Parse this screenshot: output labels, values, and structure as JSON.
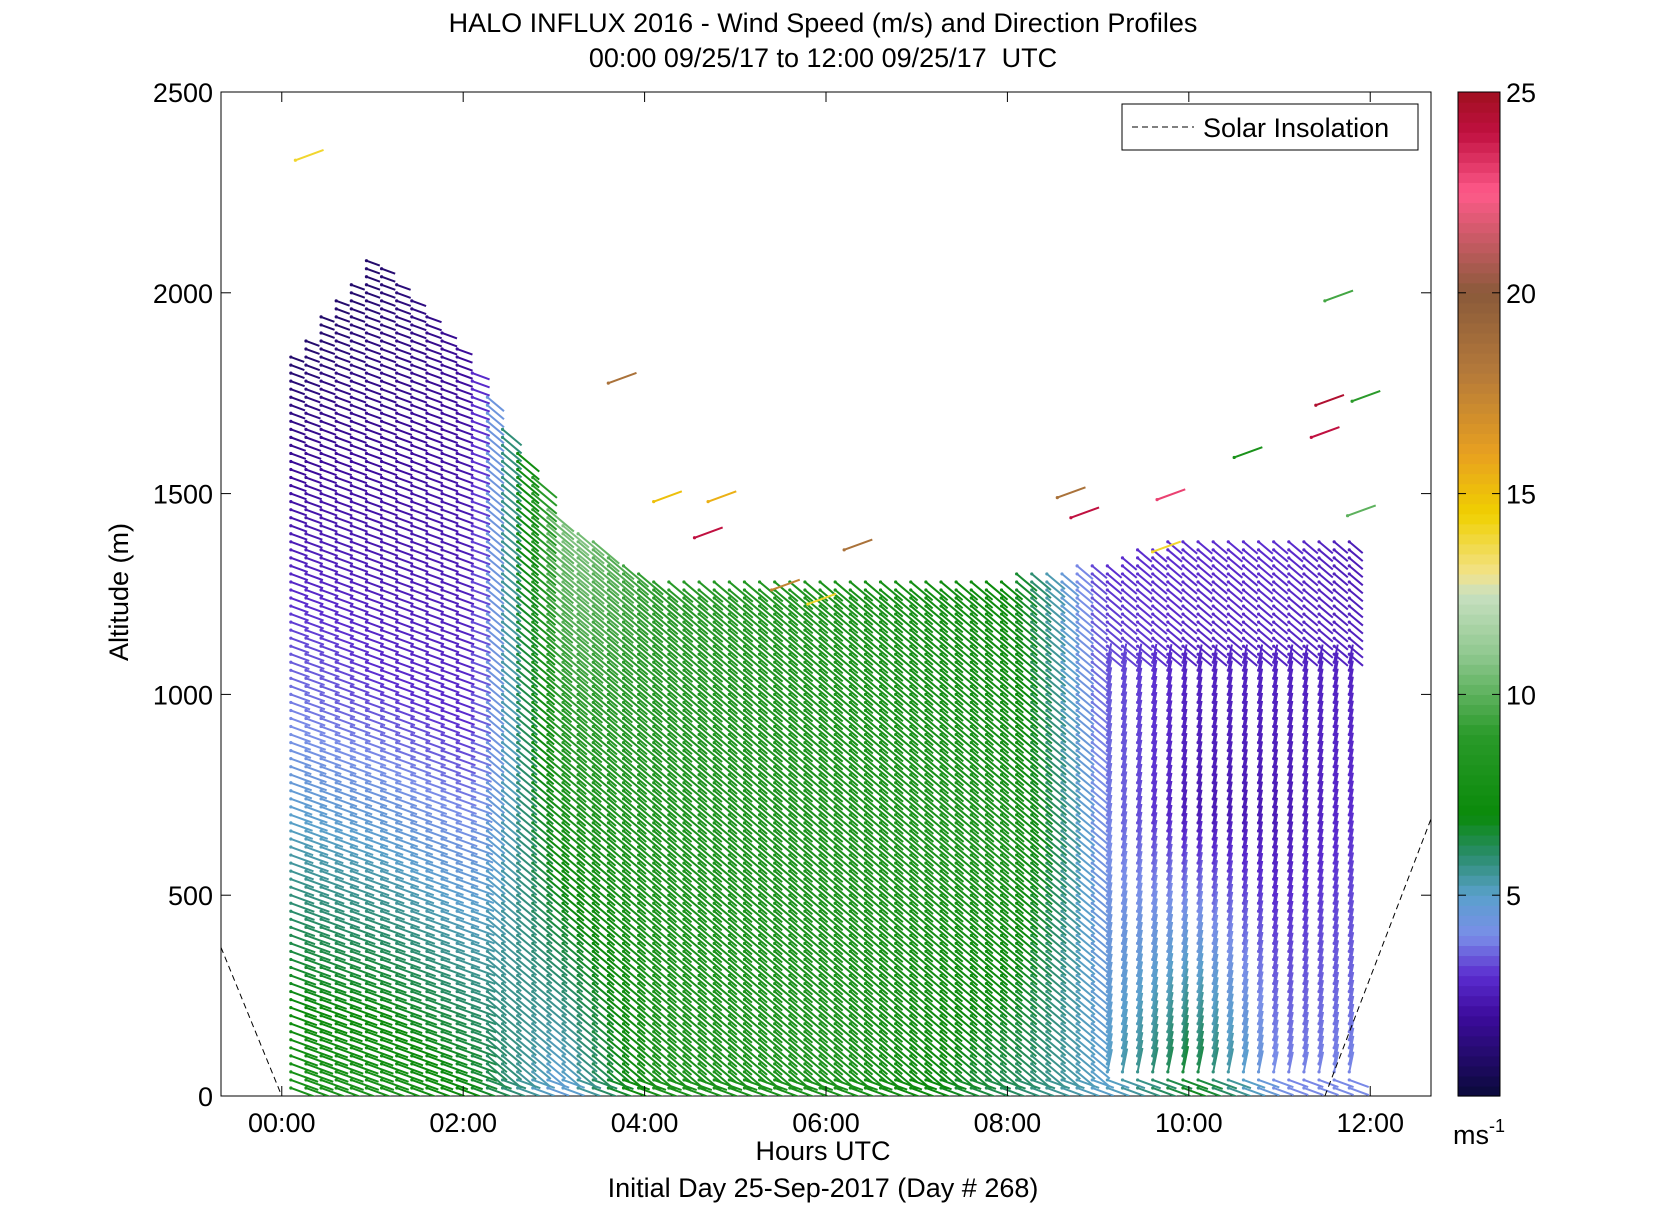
{
  "chart_data": {
    "type": "vector field (wind barbs)",
    "title": "HALO INFLUX 2016 - Wind Speed (m/s) and Direction Profiles",
    "subtitle": "00:00 09/25/17 to 12:00 09/25/17  UTC",
    "xlabel": "Hours UTC",
    "xlabel2": "Initial Day 25-Sep-2017 (Day # 268)",
    "ylabel": "Altitude (m)",
    "x_ticks": [
      "00:00",
      "02:00",
      "04:00",
      "06:00",
      "08:00",
      "10:00",
      "12:00"
    ],
    "x_tick_hours": [
      0,
      2,
      4,
      6,
      8,
      10,
      12
    ],
    "xlim_hours": [
      -0.67,
      12.67
    ],
    "y_ticks": [
      "0",
      "500",
      "1000",
      "1500",
      "2000",
      "2500"
    ],
    "y_tick_values": [
      0,
      500,
      1000,
      1500,
      2000,
      2500
    ],
    "ylim": [
      0,
      2500
    ],
    "colorbar": {
      "ticks": [
        "5",
        "10",
        "15",
        "20",
        "25"
      ],
      "tick_values": [
        5,
        10,
        15,
        20,
        25
      ],
      "range": [
        0,
        25
      ],
      "unit_label": "ms",
      "unit_exponent": "-1",
      "stops": [
        {
          "v": 0,
          "c": "#0a0a3a"
        },
        {
          "v": 2,
          "c": "#3c0b9c"
        },
        {
          "v": 3,
          "c": "#5b2ccf"
        },
        {
          "v": 4,
          "c": "#7a8ee8"
        },
        {
          "v": 5,
          "c": "#5aa0cc"
        },
        {
          "v": 6,
          "c": "#2a8c6c"
        },
        {
          "v": 7,
          "c": "#0a8a0a"
        },
        {
          "v": 9,
          "c": "#2a9a2a"
        },
        {
          "v": 11,
          "c": "#8fc88f"
        },
        {
          "v": 12.5,
          "c": "#c8e0c0"
        },
        {
          "v": 13,
          "c": "#f2e28a"
        },
        {
          "v": 14.5,
          "c": "#f0d000"
        },
        {
          "v": 16,
          "c": "#e8a020"
        },
        {
          "v": 18,
          "c": "#b57a3a"
        },
        {
          "v": 20,
          "c": "#8a5a3a"
        },
        {
          "v": 22.5,
          "c": "#ff5a8a"
        },
        {
          "v": 24,
          "c": "#c01040"
        },
        {
          "v": 25,
          "c": "#a01020"
        }
      ]
    },
    "legend": {
      "label": "Solar Insolation",
      "placement": "top-right",
      "style": "dashed black line"
    },
    "solar_insolation": {
      "description_points_hours_alt": [
        [
          -0.67,
          370
        ],
        [
          0,
          0
        ],
        [
          11.5,
          0
        ],
        [
          12.67,
          690
        ]
      ]
    },
    "profiles_approx": [
      {
        "hour": 0.1,
        "top_m": 1850,
        "speed_low_m_s": 8,
        "speed_mid_m_s": 4,
        "speed_high_m_s": 1
      },
      {
        "hour": 1.0,
        "top_m": 2100,
        "speed_low_m_s": 8,
        "speed_mid_m_s": 3,
        "speed_high_m_s": 1
      },
      {
        "hour": 2.0,
        "top_m": 1850,
        "speed_low_m_s": 7,
        "speed_mid_m_s": 3,
        "speed_high_m_s": 2
      },
      {
        "hour": 3.0,
        "top_m": 1450,
        "speed_low_m_s": 4.5,
        "speed_mid_m_s": 8,
        "speed_high_m_s": 11
      },
      {
        "hour": 4.0,
        "top_m": 1300,
        "speed_low_m_s": 8,
        "speed_mid_m_s": 8,
        "speed_high_m_s": 9
      },
      {
        "hour": 6.0,
        "top_m": 1290,
        "speed_low_m_s": 8,
        "speed_mid_m_s": 8,
        "speed_high_m_s": 8
      },
      {
        "hour": 8.0,
        "top_m": 1300,
        "speed_low_m_s": 6,
        "speed_mid_m_s": 8,
        "speed_high_m_s": 7
      },
      {
        "hour": 9.0,
        "top_m": 1330,
        "speed_low_m_s": 5,
        "speed_mid_m_s": 4,
        "speed_high_m_s": 3
      },
      {
        "hour": 10.0,
        "top_m": 1400,
        "speed_low_m_s": 7,
        "speed_mid_m_s": 2.5,
        "speed_high_m_s": 3
      },
      {
        "hour": 11.0,
        "top_m": 1380,
        "speed_low_m_s": 4,
        "speed_mid_m_s": 2.5,
        "speed_high_m_s": 3
      },
      {
        "hour": 11.8,
        "top_m": 1400,
        "speed_low_m_s": 4,
        "speed_mid_m_s": 3,
        "speed_high_m_s": 2.5
      }
    ],
    "isolated_high_vectors_approx": [
      {
        "hour": 0.15,
        "alt": 2330,
        "speed": 14
      },
      {
        "hour": 3.6,
        "alt": 1775,
        "speed": 18.5
      },
      {
        "hour": 4.55,
        "alt": 1390,
        "speed": 24
      },
      {
        "hour": 4.1,
        "alt": 1480,
        "speed": 15
      },
      {
        "hour": 4.7,
        "alt": 1480,
        "speed": 15.5
      },
      {
        "hour": 5.4,
        "alt": 1260,
        "speed": 17.5
      },
      {
        "hour": 5.8,
        "alt": 1225,
        "speed": 14
      },
      {
        "hour": 6.2,
        "alt": 1360,
        "speed": 18.5
      },
      {
        "hour": 8.55,
        "alt": 1490,
        "speed": 18.5
      },
      {
        "hour": 8.7,
        "alt": 1440,
        "speed": 24
      },
      {
        "hour": 9.65,
        "alt": 1485,
        "speed": 23
      },
      {
        "hour": 9.6,
        "alt": 1355,
        "speed": 14
      },
      {
        "hour": 10.5,
        "alt": 1590,
        "speed": 8
      },
      {
        "hour": 11.4,
        "alt": 1720,
        "speed": 24.5
      },
      {
        "hour": 11.35,
        "alt": 1640,
        "speed": 24
      },
      {
        "hour": 11.5,
        "alt": 1980,
        "speed": 9.5
      },
      {
        "hour": 11.8,
        "alt": 1730,
        "speed": 9
      },
      {
        "hour": 11.75,
        "alt": 1445,
        "speed": 10
      }
    ]
  }
}
